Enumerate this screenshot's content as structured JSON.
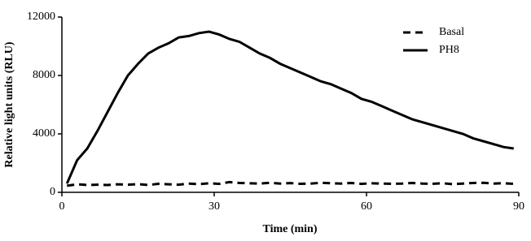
{
  "chart_data": {
    "type": "line",
    "xlabel": "Time (min)",
    "ylabel": "Relative light units (RLU)",
    "x": [
      1,
      3,
      5,
      7,
      9,
      11,
      13,
      15,
      17,
      19,
      21,
      23,
      25,
      27,
      29,
      31,
      33,
      35,
      37,
      39,
      41,
      43,
      45,
      47,
      49,
      51,
      53,
      55,
      57,
      59,
      61,
      63,
      65,
      67,
      69,
      71,
      73,
      75,
      77,
      79,
      81,
      83,
      85,
      87,
      89
    ],
    "series": [
      {
        "name": "Basal",
        "color": "#000000",
        "linestyle": "dashed",
        "values": [
          450,
          550,
          500,
          520,
          500,
          550,
          520,
          560,
          500,
          580,
          550,
          520,
          600,
          560,
          620,
          580,
          700,
          640,
          620,
          600,
          650,
          600,
          630,
          580,
          600,
          650,
          620,
          600,
          640,
          580,
          620,
          600,
          580,
          600,
          640,
          600,
          580,
          620,
          560,
          600,
          640,
          650,
          600,
          620,
          580
        ]
      },
      {
        "name": "PH8",
        "color": "#000000",
        "linestyle": "solid",
        "values": [
          600,
          2200,
          3000,
          4200,
          5500,
          6800,
          8000,
          8800,
          9500,
          9900,
          10200,
          10600,
          10700,
          10900,
          11000,
          10800,
          10500,
          10300,
          9900,
          9500,
          9200,
          8800,
          8500,
          8200,
          7900,
          7600,
          7400,
          7100,
          6800,
          6400,
          6200,
          5900,
          5600,
          5300,
          5000,
          4800,
          4600,
          4400,
          4200,
          4000,
          3700,
          3500,
          3300,
          3100,
          3000
        ]
      }
    ],
    "xlim": [
      0,
      90
    ],
    "xticks": [
      0,
      30,
      60,
      90
    ],
    "ylim": [
      0,
      12000
    ],
    "yticks": [
      0,
      4000,
      8000,
      12000
    ],
    "legend": "upper-right"
  }
}
